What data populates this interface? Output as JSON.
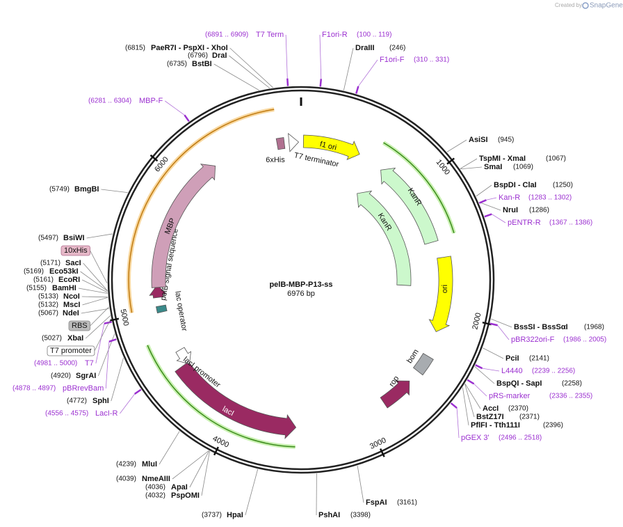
{
  "watermark": {
    "prefix": "Created by",
    "brand": "SnapGene"
  },
  "map": {
    "name": "pelB-MBP-P13-ss",
    "length": "6976 bp"
  },
  "ticks": [
    1000,
    2000,
    3000,
    4000,
    5000,
    6000
  ],
  "sites": [
    {
      "name": "PaeR7I  - PspXI  - XhoI",
      "pos": "(6815)"
    },
    {
      "name": "DraI",
      "pos": "(6796)"
    },
    {
      "name": "BstBI",
      "pos": "(6735)"
    },
    {
      "name": "DraIII",
      "pos": "(246)"
    },
    {
      "name": "AsiSI",
      "pos": "(945)"
    },
    {
      "name": "TspMI  - XmaI",
      "pos": "(1067)"
    },
    {
      "name": "SmaI",
      "pos": "(1069)"
    },
    {
      "name": "BspDI  - ClaI",
      "pos": "(1250)"
    },
    {
      "name": "NruI",
      "pos": "(1286)"
    },
    {
      "name": "BssSI  - BssSαI",
      "pos": "(1968)"
    },
    {
      "name": "PciI",
      "pos": "(2141)"
    },
    {
      "name": "BspQI  - SapI",
      "pos": "(2258)"
    },
    {
      "name": "AccI",
      "pos": "(2370)"
    },
    {
      "name": "BstZ17I",
      "pos": "(2371)"
    },
    {
      "name": "PflFI  - Tth111I",
      "pos": "(2396)"
    },
    {
      "name": "FspAI",
      "pos": "(3161)"
    },
    {
      "name": "PshAI",
      "pos": "(3398)"
    },
    {
      "name": "HpaI",
      "pos": "(3737)"
    },
    {
      "name": "PspOMI",
      "pos": "(4032)"
    },
    {
      "name": "ApaI",
      "pos": "(4036)"
    },
    {
      "name": "NmeAIII",
      "pos": "(4039)"
    },
    {
      "name": "MluI",
      "pos": "(4239)"
    },
    {
      "name": "SphI",
      "pos": "(4772)"
    },
    {
      "name": "SgrAI",
      "pos": "(4920)"
    },
    {
      "name": "XbaI",
      "pos": "(5027)"
    },
    {
      "name": "NdeI",
      "pos": "(5067)"
    },
    {
      "name": "MscI",
      "pos": "(5132)"
    },
    {
      "name": "NcoI",
      "pos": "(5133)"
    },
    {
      "name": "BamHI",
      "pos": "(5155)"
    },
    {
      "name": "EcoRI",
      "pos": "(5161)"
    },
    {
      "name": "Eco53kI",
      "pos": "(5169)"
    },
    {
      "name": "SacI",
      "pos": "(5171)"
    },
    {
      "name": "BsiWI",
      "pos": "(5497)"
    },
    {
      "name": "BmgBI",
      "pos": "(5749)"
    }
  ],
  "primers": [
    {
      "name": "T7 Term",
      "range": "(6891 .. 6909)"
    },
    {
      "name": "F1ori-R",
      "range": "(100 .. 119)"
    },
    {
      "name": "F1ori-F",
      "range": "(310 .. 331)"
    },
    {
      "name": "MBP-F",
      "range": "(6281 .. 6304)"
    },
    {
      "name": "Kan-R",
      "range": "(1283 .. 1302)"
    },
    {
      "name": "pENTR-R",
      "range": "(1367 .. 1386)"
    },
    {
      "name": "pBR322ori-F",
      "range": "(1986 .. 2005)"
    },
    {
      "name": "L4440",
      "range": "(2239 .. 2256)"
    },
    {
      "name": "pRS-marker",
      "range": "(2336 .. 2355)"
    },
    {
      "name": "pGEX 3'",
      "range": "(2496 .. 2518)"
    },
    {
      "name": "LacI-R",
      "range": "(4556 .. 4575)"
    },
    {
      "name": "pBRrevBam",
      "range": "(4878 .. 4897)"
    },
    {
      "name": "T7",
      "range": "(4981 .. 5000)"
    }
  ],
  "boxed": [
    "10xHis",
    "RBS",
    "T7 promoter"
  ],
  "features": [
    {
      "label": "f1 ori"
    },
    {
      "label": "KanR"
    },
    {
      "label": "KanR"
    },
    {
      "label": "ori"
    },
    {
      "label": "bom"
    },
    {
      "label": "rop"
    },
    {
      "label": "lacI"
    },
    {
      "label": "lacI promoter"
    },
    {
      "label": "lac operator"
    },
    {
      "label": "pelB signal sequence"
    },
    {
      "label": "MBP"
    },
    {
      "label": "6xHis"
    },
    {
      "label": "T7 terminator"
    }
  ]
}
